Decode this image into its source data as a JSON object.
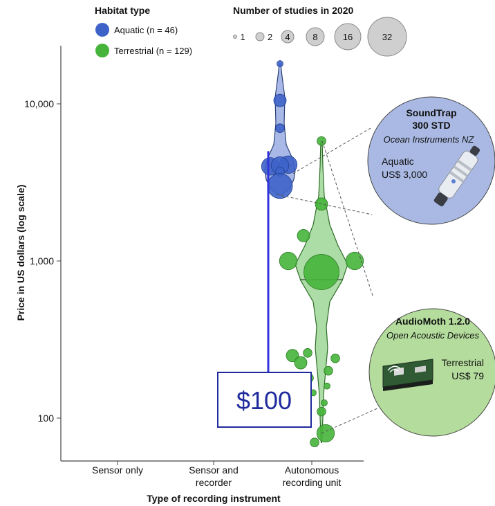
{
  "chart_data": {
    "type": "violin",
    "xlabel": "Type of recording instrument",
    "ylabel": "Price in US dollars (log scale)",
    "y_scale": "log",
    "ylim": [
      55,
      20000
    ],
    "y_ticks": [
      {
        "value": 100,
        "label": "100"
      },
      {
        "value": 1000,
        "label": "1,000"
      },
      {
        "value": 10000,
        "label": "10,000"
      }
    ],
    "categories": [
      {
        "line1": "Sensor only",
        "line2": ""
      },
      {
        "line1": "Sensor and",
        "line2": "recorder"
      },
      {
        "line1": "Autonomous",
        "line2": "recording unit"
      }
    ],
    "legend_habitat": {
      "title": "Habitat type",
      "items": [
        {
          "name": "Aquatic",
          "n_text": "(n = 46)",
          "color": "#3d63c9"
        },
        {
          "name": "Terrestrial",
          "n_text": "(n = 129)",
          "color": "#46b43a"
        }
      ]
    },
    "legend_size": {
      "title": "Number of studies in 2020",
      "items": [
        "1",
        "2",
        "4",
        "8",
        "16",
        "32"
      ]
    },
    "series": [
      {
        "name": "Aquatic",
        "category": "Autonomous recording unit",
        "color": "#3d63c9",
        "points": [
          {
            "price": 18000,
            "studies": 1
          },
          {
            "price": 10500,
            "studies": 4
          },
          {
            "price": 7000,
            "studies": 2
          },
          {
            "price": 4000,
            "studies": 8
          },
          {
            "price": 4100,
            "studies": 8
          },
          {
            "price": 4050,
            "studies": 8
          },
          {
            "price": 3700,
            "studies": 2
          },
          {
            "price": 3000,
            "studies": 16
          }
        ]
      },
      {
        "name": "Terrestrial",
        "category": "Autonomous recording unit",
        "color": "#46b43a",
        "points": [
          {
            "price": 5800,
            "studies": 2
          },
          {
            "price": 2300,
            "studies": 4
          },
          {
            "price": 1450,
            "studies": 4
          },
          {
            "price": 1000,
            "studies": 8
          },
          {
            "price": 1000,
            "studies": 8
          },
          {
            "price": 850,
            "studies": 32
          },
          {
            "price": 260,
            "studies": 2
          },
          {
            "price": 250,
            "studies": 4
          },
          {
            "price": 240,
            "studies": 2
          },
          {
            "price": 225,
            "studies": 4
          },
          {
            "price": 200,
            "studies": 2
          },
          {
            "price": 180,
            "studies": 2
          },
          {
            "price": 160,
            "studies": 1
          },
          {
            "price": 145,
            "studies": 1
          },
          {
            "price": 125,
            "studies": 1
          },
          {
            "price": 110,
            "studies": 2
          },
          {
            "price": 80,
            "studies": 8
          },
          {
            "price": 70,
            "studies": 2
          }
        ]
      }
    ],
    "callouts": [
      {
        "title_line1": "SoundTrap",
        "title_line2": "300 STD",
        "maker": "Ocean Instruments NZ",
        "habitat": "Aquatic",
        "price_text": "US$ 3,000",
        "color": "#a9b9e3",
        "points_to_price": 3000
      },
      {
        "title_line1": "AudioMoth 1.2.0",
        "title_line2": "",
        "maker": "Open Acoustic Devices",
        "habitat": "Terrestrial",
        "price_text": "US$ 79",
        "color": "#b4dc9c",
        "points_to_price": 79
      }
    ],
    "annotation": {
      "text": "$100",
      "arrow_from_price": 5000,
      "arrow_to_price": 155,
      "color": "#3333dd"
    }
  }
}
